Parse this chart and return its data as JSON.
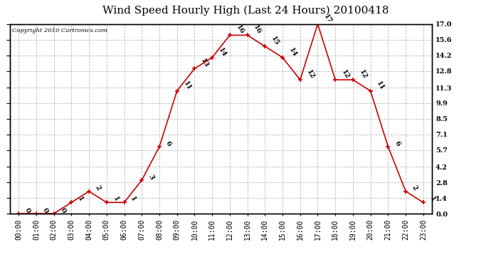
{
  "title": "Wind Speed Hourly High (Last 24 Hours) 20100418",
  "copyright": "Copyright 2010 Cartronics.com",
  "hours": [
    "00:00",
    "01:00",
    "02:00",
    "03:00",
    "04:00",
    "05:00",
    "06:00",
    "07:00",
    "08:00",
    "09:00",
    "10:00",
    "11:00",
    "12:00",
    "13:00",
    "14:00",
    "15:00",
    "16:00",
    "17:00",
    "18:00",
    "19:00",
    "20:00",
    "21:00",
    "22:00",
    "23:00"
  ],
  "values": [
    0,
    0,
    0,
    1,
    2,
    1,
    1,
    3,
    6,
    11,
    13,
    14,
    16,
    16,
    15,
    14,
    12,
    17,
    12,
    12,
    11,
    6,
    2,
    1
  ],
  "line_color": "#cc0000",
  "marker_color": "#cc0000",
  "background_color": "#ffffff",
  "grid_color": "#bbbbbb",
  "ylim": [
    0.0,
    17.0
  ],
  "yticks": [
    0.0,
    1.4,
    2.8,
    4.2,
    5.7,
    7.1,
    8.5,
    9.9,
    11.3,
    12.8,
    14.2,
    15.6,
    17.0
  ],
  "ytick_labels": [
    "0.0",
    "1.4",
    "2.8",
    "4.2",
    "5.7",
    "7.1",
    "8.5",
    "9.9",
    "11.3",
    "12.8",
    "14.2",
    "15.6",
    "17.0"
  ],
  "title_fontsize": 11,
  "tick_fontsize": 7,
  "annot_fontsize": 7,
  "copyright_fontsize": 6
}
